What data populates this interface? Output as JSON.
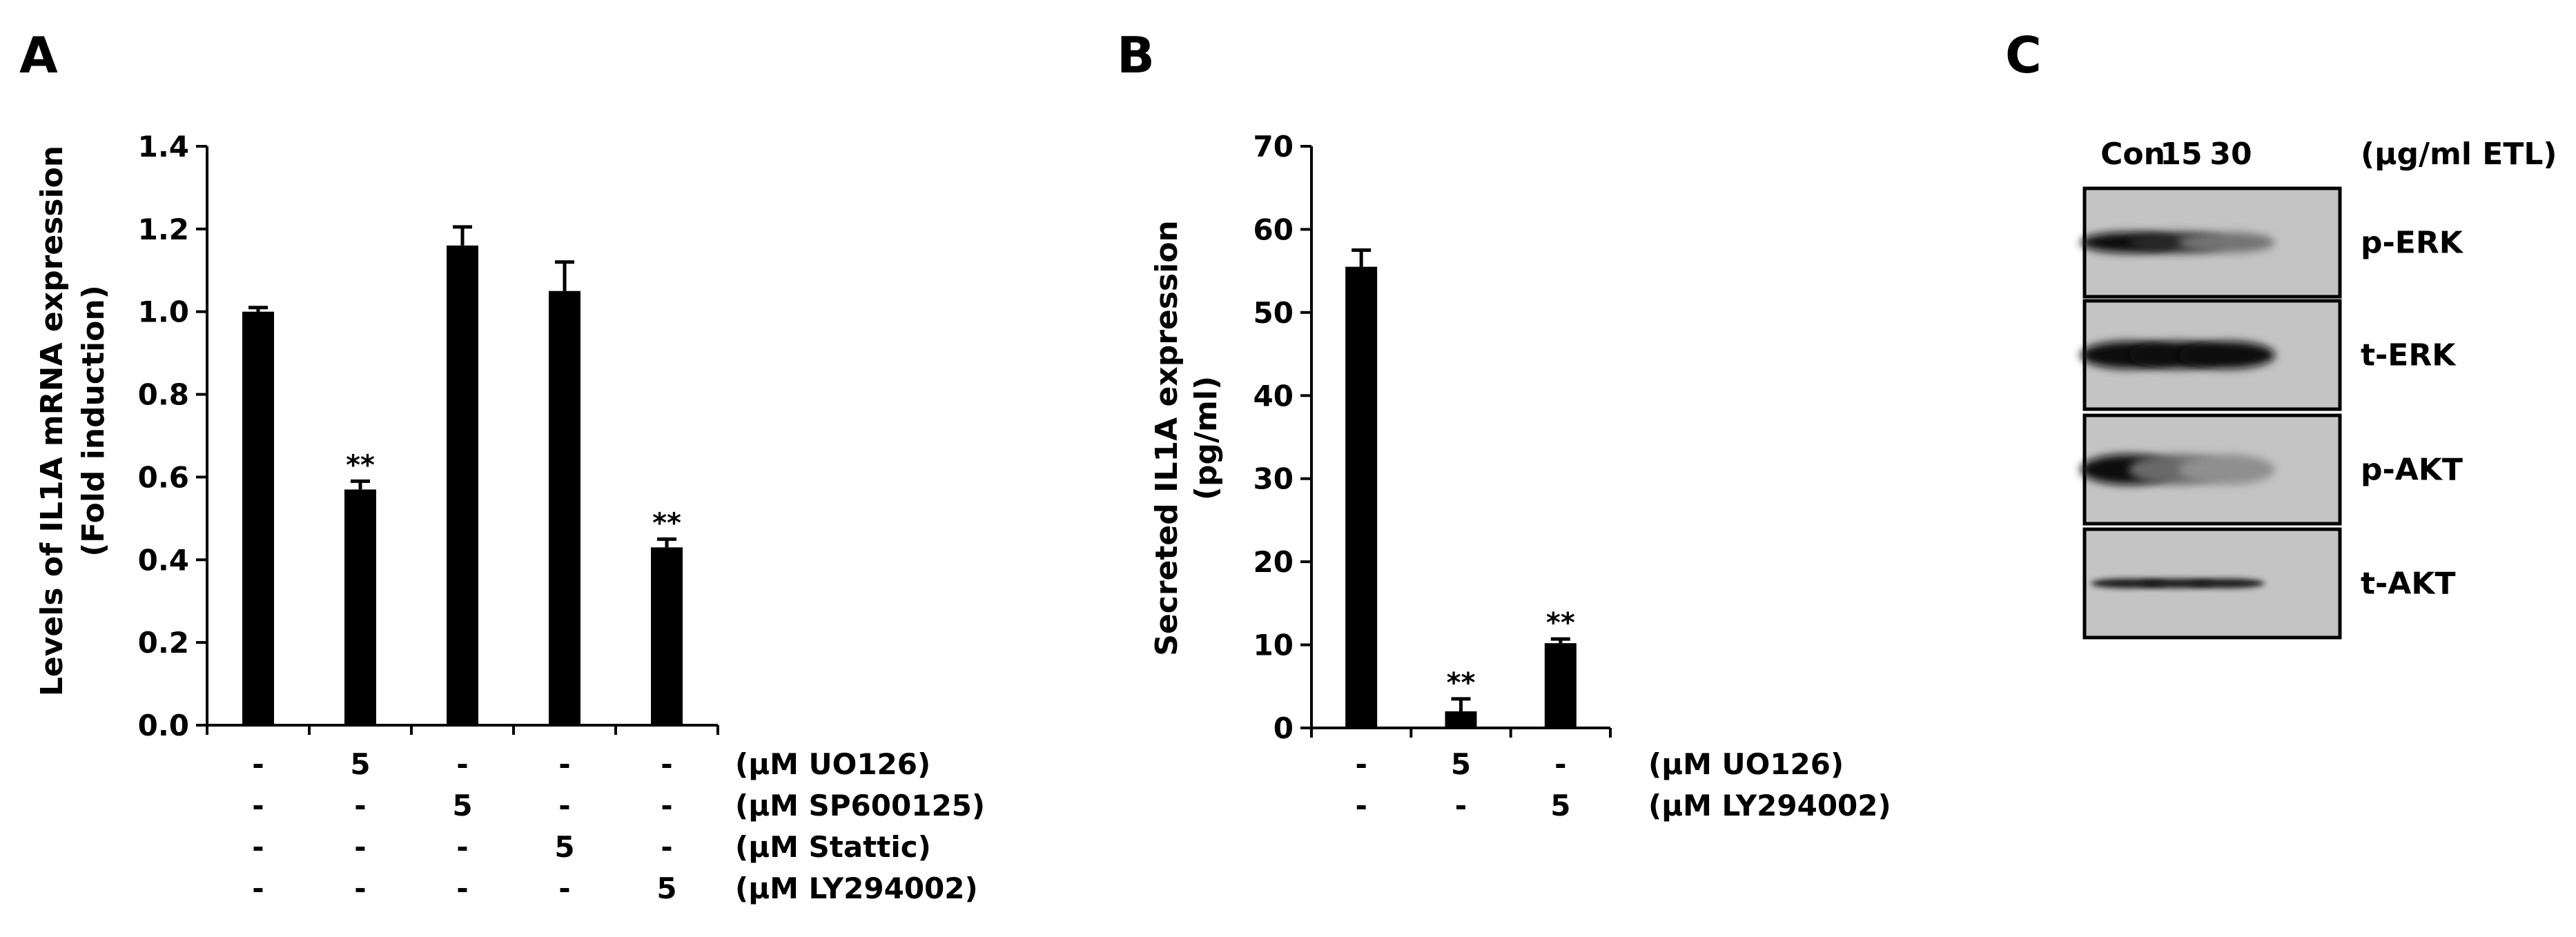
{
  "panels": {
    "a": "A",
    "b": "B",
    "c": "C"
  },
  "chart_data": [
    {
      "type": "bar",
      "panel": "A",
      "ylabel_line1": "Levels of IL1A mRNA expression",
      "ylabel_line2": "(Fold induction)",
      "ylim": [
        0,
        1.4
      ],
      "yticks": [
        "0.0",
        "0.2",
        "0.4",
        "0.6",
        "0.8",
        "1.0",
        "1.2",
        "1.4"
      ],
      "values": [
        1.0,
        0.57,
        1.16,
        1.05,
        0.43
      ],
      "errors": [
        0.01,
        0.02,
        0.045,
        0.07,
        0.02
      ],
      "significance": [
        "",
        "**",
        "",
        "",
        "**"
      ],
      "treatments": [
        {
          "label": "(μM UO126)",
          "cells": [
            "-",
            "5",
            "-",
            "-",
            "-"
          ]
        },
        {
          "label": "(μM SP600125)",
          "cells": [
            "-",
            "-",
            "5",
            "-",
            "-"
          ]
        },
        {
          "label": "(μM Stattic)",
          "cells": [
            "-",
            "-",
            "-",
            "5",
            "-"
          ]
        },
        {
          "label": "(μM LY294002)",
          "cells": [
            "-",
            "-",
            "-",
            "-",
            "5"
          ]
        }
      ]
    },
    {
      "type": "bar",
      "panel": "B",
      "ylabel_line1": "Secreted IL1A expression",
      "ylabel_line2": "(pg/ml)",
      "ylim": [
        0,
        70
      ],
      "yticks": [
        "0",
        "10",
        "20",
        "30",
        "40",
        "50",
        "60",
        "70"
      ],
      "values": [
        55.5,
        2.0,
        10.2
      ],
      "errors": [
        2.0,
        1.5,
        0.5
      ],
      "significance": [
        "",
        "**",
        "**"
      ],
      "treatments": [
        {
          "label": "(μM UO126)",
          "cells": [
            "-",
            "5",
            "-"
          ]
        },
        {
          "label": "(μM LY294002)",
          "cells": [
            "-",
            "-",
            "5"
          ]
        }
      ]
    }
  ],
  "blot": {
    "lanes": [
      "Con",
      "15",
      "30"
    ],
    "unit": "(μg/ml ETL)",
    "rows": [
      {
        "label": "p-ERK",
        "intensity": [
          1.0,
          0.85,
          0.45
        ]
      },
      {
        "label": "t-ERK",
        "intensity": [
          1.0,
          1.0,
          1.0
        ]
      },
      {
        "label": "p-AKT",
        "intensity": [
          1.0,
          0.5,
          0.3
        ]
      },
      {
        "label": "t-AKT",
        "intensity": [
          0.9,
          0.9,
          0.9
        ]
      }
    ]
  }
}
